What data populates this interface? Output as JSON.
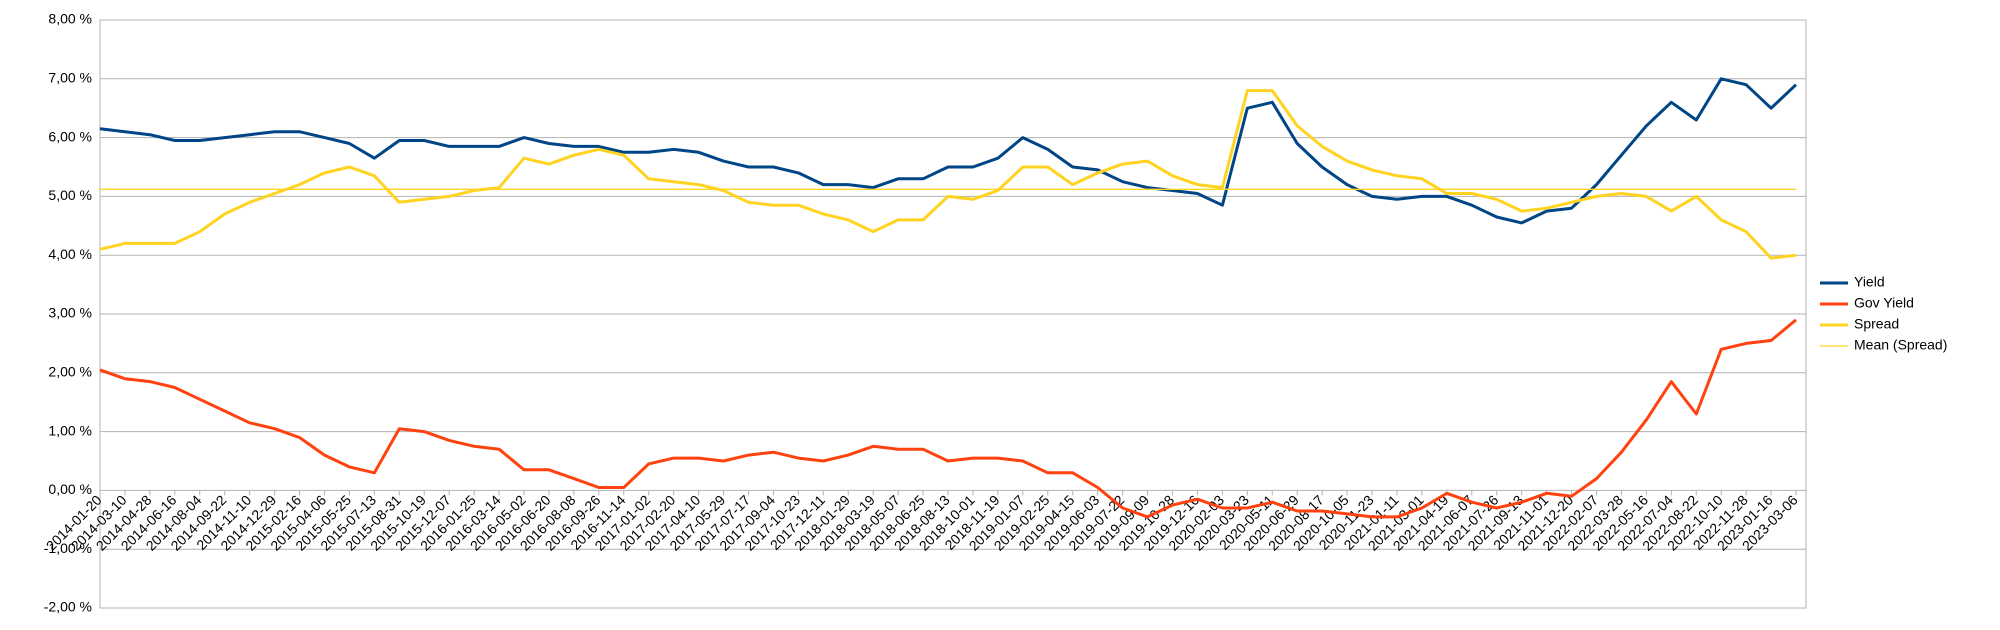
{
  "chart_data": {
    "type": "line",
    "categories": [
      "2014-01-20",
      "2014-03-10",
      "2014-04-28",
      "2014-06-16",
      "2014-08-04",
      "2014-09-22",
      "2014-11-10",
      "2014-12-29",
      "2015-02-16",
      "2015-04-06",
      "2015-05-25",
      "2015-07-13",
      "2015-08-31",
      "2015-10-19",
      "2015-12-07",
      "2016-01-25",
      "2016-03-14",
      "2016-05-02",
      "2016-06-20",
      "2016-08-08",
      "2016-09-26",
      "2016-11-14",
      "2017-01-02",
      "2017-02-20",
      "2017-04-10",
      "2017-05-29",
      "2017-07-17",
      "2017-09-04",
      "2017-10-23",
      "2017-12-11",
      "2018-01-29",
      "2018-03-19",
      "2018-05-07",
      "2018-06-25",
      "2018-08-13",
      "2018-10-01",
      "2018-11-19",
      "2019-01-07",
      "2019-02-25",
      "2019-04-15",
      "2019-06-03",
      "2019-07-22",
      "2019-09-09",
      "2019-10-28",
      "2019-12-16",
      "2020-02-03",
      "2020-03-23",
      "2020-05-11",
      "2020-06-29",
      "2020-08-17",
      "2020-10-05",
      "2020-11-23",
      "2021-01-11",
      "2021-03-01",
      "2021-04-19",
      "2021-06-07",
      "2021-07-26",
      "2021-09-13",
      "2021-11-01",
      "2021-12-20",
      "2022-02-07",
      "2022-03-28",
      "2022-05-16",
      "2022-07-04",
      "2022-08-22",
      "2022-10-10",
      "2022-11-28",
      "2023-01-16",
      "2023-03-06"
    ],
    "series": [
      {
        "name": "Yield",
        "color": "#004586",
        "width": 3,
        "values": [
          6.15,
          6.1,
          6.05,
          5.95,
          5.95,
          6.0,
          6.05,
          6.1,
          6.1,
          6.0,
          5.9,
          5.65,
          5.95,
          5.95,
          5.85,
          5.85,
          5.85,
          6.0,
          5.9,
          5.85,
          5.85,
          5.75,
          5.75,
          5.8,
          5.75,
          5.6,
          5.5,
          5.5,
          5.4,
          5.2,
          5.2,
          5.15,
          5.3,
          5.3,
          5.5,
          5.5,
          5.65,
          6.0,
          5.8,
          5.5,
          5.45,
          5.25,
          5.15,
          5.1,
          5.05,
          4.85,
          6.5,
          6.6,
          5.9,
          5.5,
          5.2,
          5.0,
          4.95,
          5.0,
          5.0,
          4.85,
          4.65,
          4.55,
          4.75,
          4.8,
          5.2,
          5.7,
          6.2,
          6.6,
          6.3,
          7.0,
          6.9,
          6.5,
          6.9
        ]
      },
      {
        "name": "Gov Yield",
        "color": "#ff420e",
        "width": 3,
        "values": [
          2.05,
          1.9,
          1.85,
          1.75,
          1.55,
          1.35,
          1.15,
          1.05,
          0.9,
          0.6,
          0.4,
          0.3,
          1.05,
          1.0,
          0.85,
          0.75,
          0.7,
          0.35,
          0.35,
          0.2,
          0.05,
          0.05,
          0.45,
          0.55,
          0.55,
          0.5,
          0.6,
          0.65,
          0.55,
          0.5,
          0.6,
          0.75,
          0.7,
          0.7,
          0.5,
          0.55,
          0.55,
          0.5,
          0.3,
          0.3,
          0.05,
          -0.3,
          -0.45,
          -0.25,
          -0.15,
          -0.3,
          -0.3,
          -0.2,
          -0.35,
          -0.35,
          -0.4,
          -0.45,
          -0.45,
          -0.3,
          -0.05,
          -0.2,
          -0.3,
          -0.2,
          -0.05,
          -0.1,
          0.2,
          0.65,
          1.2,
          1.85,
          1.3,
          2.4,
          2.5,
          2.55,
          2.9
        ]
      },
      {
        "name": "Spread",
        "color": "#ffd320",
        "width": 3,
        "values": [
          4.1,
          4.2,
          4.2,
          4.2,
          4.4,
          4.7,
          4.9,
          5.05,
          5.2,
          5.4,
          5.5,
          5.35,
          4.9,
          4.95,
          5.0,
          5.1,
          5.15,
          5.65,
          5.55,
          5.7,
          5.8,
          5.7,
          5.3,
          5.25,
          5.2,
          5.1,
          4.9,
          4.85,
          4.85,
          4.7,
          4.6,
          4.4,
          4.6,
          4.6,
          5.0,
          4.95,
          5.1,
          5.5,
          5.5,
          5.2,
          5.4,
          5.55,
          5.6,
          5.35,
          5.2,
          5.15,
          6.8,
          6.8,
          6.2,
          5.85,
          5.6,
          5.45,
          5.35,
          5.3,
          5.05,
          5.05,
          4.95,
          4.75,
          4.8,
          4.9,
          5.0,
          5.05,
          5.0,
          4.75,
          5.0,
          4.6,
          4.4,
          3.95,
          4.0
        ]
      },
      {
        "name": "Mean (Spread)",
        "color": "#ffd320",
        "width": 1.3,
        "values": [
          5.12,
          5.12,
          5.12,
          5.12,
          5.12,
          5.12,
          5.12,
          5.12,
          5.12,
          5.12,
          5.12,
          5.12,
          5.12,
          5.12,
          5.12,
          5.12,
          5.12,
          5.12,
          5.12,
          5.12,
          5.12,
          5.12,
          5.12,
          5.12,
          5.12,
          5.12,
          5.12,
          5.12,
          5.12,
          5.12,
          5.12,
          5.12,
          5.12,
          5.12,
          5.12,
          5.12,
          5.12,
          5.12,
          5.12,
          5.12,
          5.12,
          5.12,
          5.12,
          5.12,
          5.12,
          5.12,
          5.12,
          5.12,
          5.12,
          5.12,
          5.12,
          5.12,
          5.12,
          5.12,
          5.12,
          5.12,
          5.12,
          5.12,
          5.12,
          5.12,
          5.12,
          5.12,
          5.12,
          5.12,
          5.12,
          5.12,
          5.12,
          5.12,
          5.12
        ]
      }
    ],
    "ylim": [
      -2,
      8
    ],
    "yticks": [
      {
        "value": -2,
        "label": "-2,00 %"
      },
      {
        "value": -1,
        "label": "-1,00 %"
      },
      {
        "value": 0,
        "label": "0,00 %"
      },
      {
        "value": 1,
        "label": "1,00 %"
      },
      {
        "value": 2,
        "label": "2,00 %"
      },
      {
        "value": 3,
        "label": "3,00 %"
      },
      {
        "value": 4,
        "label": "4,00 %"
      },
      {
        "value": 5,
        "label": "5,00 %"
      },
      {
        "value": 6,
        "label": "6,00 %"
      },
      {
        "value": 7,
        "label": "7,00 %"
      },
      {
        "value": 8,
        "label": "8,00 %"
      }
    ],
    "grid": true,
    "legend": "right"
  }
}
